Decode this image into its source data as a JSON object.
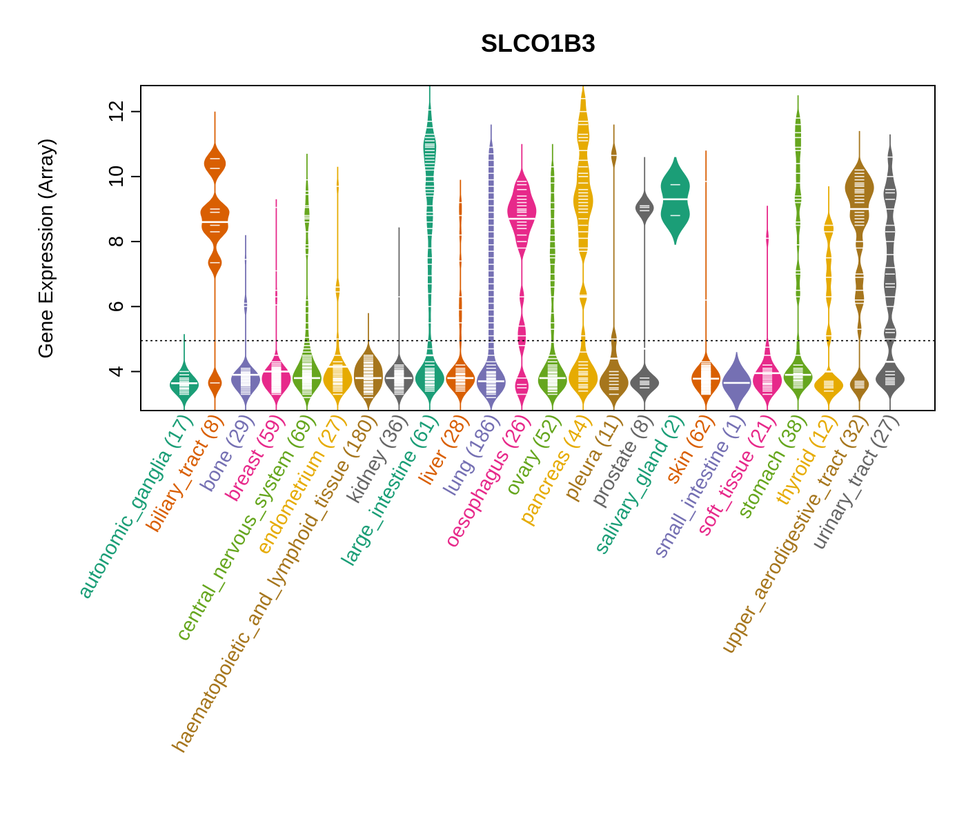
{
  "chart_data": {
    "type": "beanplot",
    "title": "SLCO1B3",
    "xlabel": "",
    "ylabel": "Gene Expression (Array)",
    "ylim": [
      2.8,
      12.8
    ],
    "xlim": [
      0.5,
      24.5
    ],
    "yticks": [
      4,
      6,
      8,
      10,
      12
    ],
    "ytick_labels": [
      "4",
      "6",
      "8",
      "10",
      "12"
    ],
    "reference_line": {
      "value": 4.95,
      "style": "dotted"
    },
    "grid": false,
    "legend": "none",
    "palette": [
      "#1B9E77",
      "#D95F02",
      "#7570B3",
      "#E7298A",
      "#66A61E",
      "#E6AB02",
      "#A6761D",
      "#666666"
    ],
    "groups": [
      {
        "name": "autonomic_ganglia",
        "n": 17,
        "label": "autonomic_ganglia (17)",
        "color": "#1B9E77",
        "median": 3.64,
        "min": 2.8,
        "max": 5.15,
        "points": [
          3.3,
          3.4,
          3.45,
          3.5,
          3.55,
          3.6,
          3.62,
          3.64,
          3.66,
          3.7,
          3.75,
          3.8,
          3.9,
          4.0,
          3.35,
          3.48,
          3.58
        ]
      },
      {
        "name": "biliary_tract",
        "n": 8,
        "label": "biliary_tract (8)",
        "color": "#D95F02",
        "median": 8.6,
        "min": 2.8,
        "max": 12.0,
        "points": [
          3.65,
          7.35,
          8.3,
          8.5,
          8.9,
          9.0,
          10.25,
          10.55
        ]
      },
      {
        "name": "bone",
        "n": 29,
        "label": "bone (29)",
        "color": "#7570B3",
        "median": 3.9,
        "min": 2.8,
        "max": 8.2,
        "points": [
          3.3,
          3.35,
          3.4,
          3.45,
          3.5,
          3.55,
          3.6,
          3.62,
          3.65,
          3.68,
          3.7,
          3.72,
          3.75,
          3.78,
          3.8,
          3.82,
          3.85,
          3.88,
          3.9,
          3.92,
          3.95,
          3.98,
          4.0,
          4.05,
          4.1,
          6.0,
          6.1,
          7.45,
          3.58
        ]
      },
      {
        "name": "breast",
        "n": 59,
        "label": "breast (59)",
        "color": "#E7298A",
        "median": 4.0,
        "min": 2.8,
        "max": 9.3,
        "points": [
          3.3,
          3.35,
          3.4,
          3.42,
          3.45,
          3.48,
          3.5,
          3.52,
          3.55,
          3.58,
          3.6,
          3.62,
          3.64,
          3.66,
          3.68,
          3.7,
          3.72,
          3.74,
          3.76,
          3.78,
          3.8,
          3.82,
          3.84,
          3.86,
          3.88,
          3.9,
          3.92,
          3.94,
          3.96,
          3.98,
          4.0,
          4.02,
          4.04,
          4.06,
          4.08,
          4.1,
          4.12,
          4.15,
          4.2,
          4.25,
          4.3,
          4.5,
          3.38,
          3.44,
          3.5,
          3.56,
          3.62,
          3.68,
          3.74,
          3.8,
          3.86,
          3.92,
          3.98,
          4.04,
          6.05,
          6.3,
          6.5,
          7.1,
          9.05
        ]
      },
      {
        "name": "central_nervous_system",
        "n": 69,
        "label": "central_nervous_system (69)",
        "color": "#66A61E",
        "median": 3.8,
        "min": 2.8,
        "max": 10.7,
        "points": [
          3.2,
          3.3,
          3.4,
          3.45,
          3.5,
          3.55,
          3.6,
          3.62,
          3.65,
          3.68,
          3.7,
          3.72,
          3.75,
          3.78,
          3.8,
          3.82,
          3.85,
          3.88,
          3.9,
          3.92,
          3.95,
          3.98,
          4.0,
          4.05,
          4.1,
          4.15,
          4.2,
          4.25,
          4.3,
          4.4,
          4.5,
          4.6,
          4.7,
          4.8,
          3.35,
          3.48,
          3.58,
          3.66,
          3.74,
          3.86,
          3.94,
          4.02,
          4.12,
          4.22,
          4.35,
          4.45,
          4.9,
          5.05,
          5.3,
          5.5,
          5.8,
          6.0,
          6.2,
          7.6,
          7.8,
          7.9,
          8.3,
          8.6,
          8.7,
          8.75,
          8.8,
          9.05,
          9.1,
          9.45,
          9.55,
          9.9,
          3.52,
          3.7,
          3.84
        ]
      },
      {
        "name": "endometrium",
        "n": 27,
        "label": "endometrium (27)",
        "color": "#E6AB02",
        "median": 4.15,
        "min": 2.8,
        "max": 10.3,
        "points": [
          3.3,
          3.4,
          3.45,
          3.5,
          3.55,
          3.6,
          3.65,
          3.7,
          3.72,
          3.75,
          3.78,
          3.8,
          3.85,
          3.9,
          3.95,
          4.0,
          4.05,
          4.1,
          4.15,
          4.2,
          4.3,
          4.5,
          5.0,
          6.45,
          6.6,
          9.7,
          3.62
        ]
      },
      {
        "name": "haematopoietic_and_lymphoid_tissue",
        "n": 180,
        "label": "haematopoietic_and_lymphoid_tissue (180)",
        "color": "#A6761D",
        "median": 3.8,
        "min": 2.8,
        "max": 5.8,
        "points": [
          3.2,
          3.3,
          3.35,
          3.4,
          3.45,
          3.5,
          3.55,
          3.6,
          3.65,
          3.7,
          3.75,
          3.8,
          3.85,
          3.9,
          3.95,
          4.0,
          4.05,
          4.1,
          4.15,
          4.2,
          4.25,
          4.3,
          4.35,
          4.4,
          4.45,
          4.5,
          3.38,
          3.48,
          3.58,
          3.68,
          3.78,
          3.88,
          3.98,
          4.08,
          4.18,
          4.28
        ]
      },
      {
        "name": "kidney",
        "n": 36,
        "label": "kidney (36)",
        "color": "#666666",
        "median": 3.8,
        "min": 2.8,
        "max": 8.45,
        "points": [
          3.3,
          3.4,
          3.45,
          3.5,
          3.55,
          3.6,
          3.62,
          3.65,
          3.68,
          3.7,
          3.72,
          3.75,
          3.78,
          3.8,
          3.82,
          3.85,
          3.88,
          3.9,
          3.92,
          3.95,
          3.98,
          4.0,
          4.05,
          4.1,
          4.15,
          4.2,
          3.35,
          3.48,
          3.58,
          3.66,
          3.74,
          3.84,
          3.94,
          4.02,
          6.3,
          8.45
        ]
      },
      {
        "name": "large_intestine",
        "n": 61,
        "label": "large_intestine (61)",
        "color": "#1B9E77",
        "median": 4.5,
        "min": 2.8,
        "max": 12.8,
        "points": [
          3.4,
          3.5,
          3.55,
          3.6,
          3.65,
          3.7,
          3.75,
          3.8,
          3.85,
          3.9,
          3.95,
          4.0,
          4.1,
          4.2,
          4.3,
          4.5,
          4.7,
          4.95,
          5.5,
          6.0,
          6.4,
          6.7,
          6.95,
          7.3,
          7.5,
          7.8,
          8.2,
          8.4,
          8.6,
          8.9,
          9.1,
          9.4,
          9.5,
          9.7,
          9.85,
          10.0,
          10.2,
          10.3,
          10.5,
          10.6,
          10.7,
          10.8,
          10.9,
          11.0,
          11.2,
          11.3,
          11.5,
          11.7,
          12.05,
          3.45,
          3.58,
          3.68,
          3.78,
          3.88,
          3.98,
          4.05,
          8.8,
          9.6,
          10.4,
          10.95,
          11.1
        ]
      },
      {
        "name": "liver",
        "n": 28,
        "label": "liver (28)",
        "color": "#D95F02",
        "median": 3.8,
        "min": 2.8,
        "max": 9.9,
        "points": [
          3.4,
          3.5,
          3.55,
          3.6,
          3.65,
          3.7,
          3.75,
          3.8,
          3.85,
          3.9,
          3.95,
          4.0,
          4.1,
          4.2,
          4.95,
          5.5,
          5.9,
          6.3,
          7.4,
          8.2,
          8.8,
          9.2,
          3.45,
          3.62,
          3.72,
          3.82,
          3.92,
          4.05
        ]
      },
      {
        "name": "lung",
        "n": 186,
        "label": "lung (186)",
        "color": "#7570B3",
        "median": 3.7,
        "min": 2.8,
        "max": 11.6,
        "points": [
          3.2,
          3.3,
          3.35,
          3.4,
          3.45,
          3.5,
          3.55,
          3.6,
          3.65,
          3.7,
          3.75,
          3.8,
          3.85,
          3.9,
          3.95,
          4.0,
          4.1,
          4.2,
          4.3,
          4.5,
          4.7,
          4.9,
          5.1,
          5.3,
          5.5,
          5.7,
          5.9,
          6.1,
          6.3,
          6.5,
          6.7,
          6.9,
          7.1,
          7.3,
          7.5,
          7.7,
          7.9,
          8.1,
          8.3,
          8.5,
          8.7,
          8.9,
          9.1,
          9.3,
          9.5,
          9.7,
          9.9,
          10.1,
          10.3,
          10.5,
          10.7,
          10.9,
          3.38,
          3.48,
          3.58,
          3.68,
          3.78,
          3.88,
          3.98
        ]
      },
      {
        "name": "oesophagus",
        "n": 26,
        "label": "oesophagus (26)",
        "color": "#E7298A",
        "median": 8.7,
        "min": 2.8,
        "max": 11.0,
        "points": [
          3.3,
          3.6,
          3.8,
          4.8,
          5.1,
          5.4,
          6.3,
          7.8,
          8.2,
          8.4,
          8.5,
          8.6,
          8.7,
          8.8,
          8.9,
          9.0,
          9.2,
          9.3,
          9.4,
          9.6,
          9.75,
          9.85,
          8.0,
          8.95,
          3.5,
          9.1
        ]
      },
      {
        "name": "ovary",
        "n": 52,
        "label": "ovary (52)",
        "color": "#66A61E",
        "median": 3.8,
        "min": 2.8,
        "max": 11.0,
        "points": [
          3.3,
          3.4,
          3.45,
          3.5,
          3.55,
          3.6,
          3.65,
          3.7,
          3.75,
          3.8,
          3.85,
          3.9,
          3.95,
          4.0,
          4.05,
          4.1,
          4.2,
          4.3,
          4.5,
          4.9,
          5.3,
          5.5,
          6.3,
          6.8,
          7.0,
          7.3,
          7.5,
          7.8,
          8.0,
          8.4,
          9.0,
          9.5,
          10.0,
          10.3,
          3.38,
          3.48,
          3.58,
          3.68,
          3.78,
          3.88,
          3.98,
          4.15,
          4.4,
          5.8,
          6.6,
          7.6,
          8.2,
          8.7,
          9.2,
          9.8,
          3.62,
          3.72
        ]
      },
      {
        "name": "pancreas",
        "n": 44,
        "label": "pancreas (44)",
        "color": "#E6AB02",
        "median": 6.3,
        "min": 2.8,
        "max": 12.8,
        "points": [
          3.4,
          3.5,
          3.6,
          3.7,
          3.8,
          3.9,
          4.0,
          4.1,
          4.3,
          4.6,
          5.1,
          6.3,
          6.35,
          7.7,
          7.8,
          8.1,
          8.5,
          8.7,
          8.9,
          9.0,
          9.2,
          9.3,
          9.4,
          9.6,
          9.8,
          10.0,
          10.3,
          10.5,
          10.8,
          11.1,
          11.3,
          11.6,
          11.7,
          12.4,
          3.55,
          3.75,
          3.95,
          4.2,
          8.3,
          9.1,
          9.5,
          10.1,
          11.2,
          12.0
        ]
      },
      {
        "name": "pleura",
        "n": 11,
        "label": "pleura (11)",
        "color": "#A6761D",
        "median": 4.4,
        "min": 2.8,
        "max": 11.6,
        "points": [
          3.3,
          3.5,
          3.6,
          3.7,
          3.8,
          3.9,
          4.0,
          4.4,
          5.0,
          10.65,
          3.45
        ]
      },
      {
        "name": "prostate",
        "n": 8,
        "label": "prostate (8)",
        "color": "#666666",
        "median": 4.7,
        "min": 2.8,
        "max": 10.6,
        "points": [
          3.5,
          3.6,
          3.7,
          3.8,
          8.95,
          9.05,
          9.1,
          3.65
        ]
      },
      {
        "name": "salivary_gland",
        "n": 2,
        "label": "salivary_gland (2)",
        "color": "#1B9E77",
        "median": 9.3,
        "min": 7.9,
        "max": 10.6,
        "points": [
          8.8,
          9.75
        ]
      },
      {
        "name": "skin",
        "n": 62,
        "label": "skin (62)",
        "color": "#D95F02",
        "median": 3.78,
        "min": 2.8,
        "max": 10.8,
        "points": [
          3.3,
          3.35,
          3.4,
          3.45,
          3.5,
          3.55,
          3.6,
          3.62,
          3.65,
          3.68,
          3.7,
          3.72,
          3.75,
          3.78,
          3.8,
          3.82,
          3.85,
          3.88,
          3.9,
          3.92,
          3.95,
          3.98,
          4.0,
          4.05,
          4.1,
          4.15,
          4.2,
          4.3,
          6.2,
          9.85,
          3.38,
          3.48,
          3.58,
          3.66,
          3.74,
          3.84,
          3.94,
          4.02,
          3.42,
          3.52,
          3.64,
          3.76,
          3.86,
          3.96,
          4.08,
          3.32,
          3.46,
          3.56,
          3.7,
          3.81,
          3.91,
          4.01,
          4.12,
          3.36,
          3.54,
          3.67,
          3.79,
          3.89,
          3.99,
          4.06,
          4.18,
          4.25
        ]
      },
      {
        "name": "small_intestine",
        "n": 1,
        "label": "small_intestine (1)",
        "color": "#7570B3",
        "median": 3.65,
        "min": 2.8,
        "max": 4.6,
        "points": [
          3.65
        ]
      },
      {
        "name": "soft_tissue",
        "n": 21,
        "label": "soft_tissue (21)",
        "color": "#E7298A",
        "median": 3.95,
        "min": 2.8,
        "max": 9.1,
        "points": [
          3.3,
          3.4,
          3.5,
          3.55,
          3.6,
          3.65,
          3.7,
          3.75,
          3.8,
          3.85,
          3.9,
          3.95,
          4.0,
          4.05,
          4.1,
          4.2,
          4.5,
          4.75,
          8.1,
          3.45,
          3.62
        ]
      },
      {
        "name": "stomach",
        "n": 38,
        "label": "stomach (38)",
        "color": "#66A61E",
        "median": 3.9,
        "min": 2.8,
        "max": 12.5,
        "points": [
          3.5,
          3.6,
          3.65,
          3.7,
          3.75,
          3.8,
          3.85,
          3.9,
          3.95,
          4.0,
          4.1,
          4.2,
          4.5,
          4.95,
          6.3,
          6.5,
          7.0,
          7.1,
          7.9,
          8.5,
          8.6,
          9.2,
          9.3,
          9.4,
          9.8,
          10.1,
          10.4,
          10.8,
          10.9,
          11.2,
          11.35,
          11.6,
          11.8,
          3.55,
          3.72,
          3.82,
          3.92,
          4.05
        ]
      },
      {
        "name": "thyroid",
        "n": 12,
        "label": "thyroid (12)",
        "color": "#E6AB02",
        "median": 4.0,
        "min": 2.8,
        "max": 9.7,
        "points": [
          3.4,
          3.5,
          3.6,
          3.65,
          5.1,
          6.3,
          6.9,
          7.5,
          8.3,
          8.5,
          3.55,
          3.7
        ]
      },
      {
        "name": "upper_aerodigestive_tract",
        "n": 32,
        "label": "upper_aerodigestive_tract (32)",
        "color": "#A6761D",
        "median": 9.0,
        "min": 2.8,
        "max": 11.4,
        "points": [
          3.5,
          3.6,
          3.7,
          5.3,
          6.2,
          6.5,
          6.9,
          7.0,
          8.0,
          8.5,
          8.7,
          8.8,
          8.9,
          9.0,
          9.3,
          9.4,
          9.5,
          9.6,
          9.7,
          9.8,
          9.9,
          10.0,
          10.2,
          3.65,
          6.1,
          7.8,
          8.6,
          9.2,
          9.55,
          9.75,
          10.1,
          3.55
        ]
      },
      {
        "name": "urinary_tract",
        "n": 27,
        "label": "urinary_tract (27)",
        "color": "#666666",
        "median": 4.3,
        "min": 2.8,
        "max": 11.3,
        "points": [
          3.6,
          3.7,
          3.8,
          4.0,
          4.3,
          5.2,
          5.3,
          6.3,
          6.6,
          6.7,
          7.2,
          7.6,
          8.3,
          8.5,
          9.3,
          9.5,
          9.6,
          10.0,
          10.6,
          3.65,
          3.75,
          3.9,
          5.0,
          6.0,
          7.0,
          8.0,
          9.0
        ]
      }
    ]
  }
}
